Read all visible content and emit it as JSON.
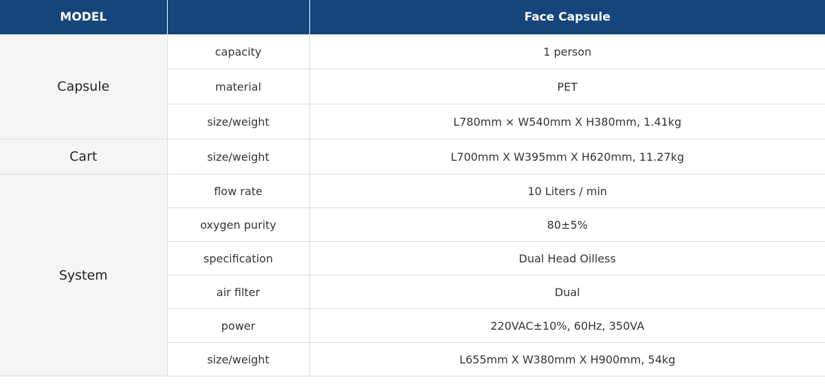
{
  "header": {
    "model_label": "MODEL",
    "spec_label": "",
    "product_label": "Face Capsule"
  },
  "groups": [
    {
      "name": "Capsule",
      "rows": [
        {
          "spec": "capacity",
          "value": "1 person"
        },
        {
          "spec": "material",
          "value": "PET"
        },
        {
          "spec": "size/weight",
          "value": "L780mm × W540mm X H380mm, 1.41kg"
        }
      ]
    },
    {
      "name": "Cart",
      "rows": [
        {
          "spec": "size/weight",
          "value": "L700mm X W395mm X H620mm, 11.27kg"
        }
      ]
    },
    {
      "name": "System",
      "rows": [
        {
          "spec": "flow rate",
          "value": "10 Liters / min"
        },
        {
          "spec": "oxygen purity",
          "value": "80±5%"
        },
        {
          "spec": "specification",
          "value": "Dual Head Oilless"
        },
        {
          "spec": "air filter",
          "value": "Dual"
        },
        {
          "spec": "power",
          "value": "220VAC±10%, 60Hz, 350VA"
        },
        {
          "spec": "size/weight",
          "value": "L655mm X W380mm X H900mm, 54kg"
        }
      ]
    }
  ],
  "colors": {
    "header_bg": "#15457a",
    "group_bg": "#f5f5f5",
    "border": "#dcdcdc"
  }
}
